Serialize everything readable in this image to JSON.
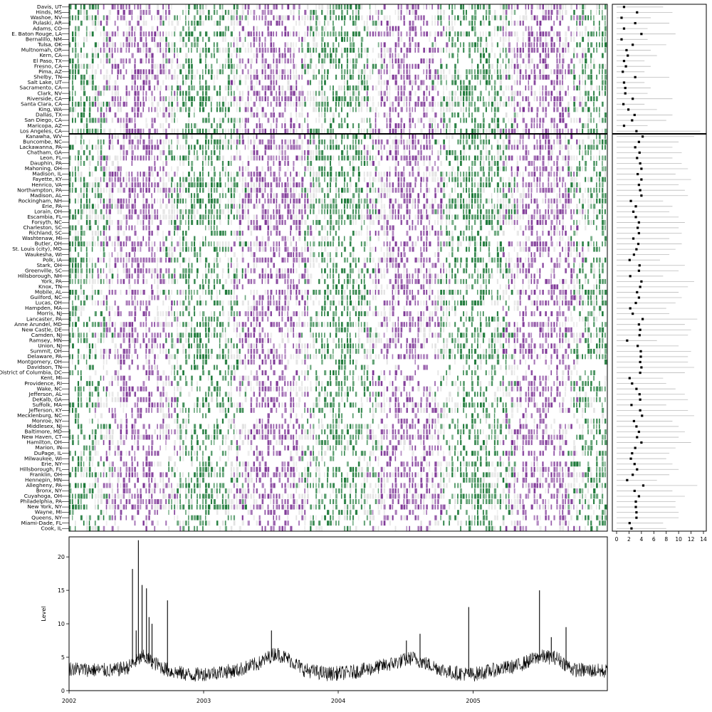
{
  "chart_data": [
    {
      "type": "heatmap",
      "title": "",
      "xlabel": "",
      "ylabel": "",
      "x_range": [
        "2002-01-01",
        "2005-12-31"
      ],
      "colors": {
        "high": "#7b3294",
        "low": "#1b7837",
        "mid": "#e0e0e0",
        "divider": "#000000"
      },
      "group_top": [
        "Davis, UT",
        "Hinds, MS",
        "Washoe, NV",
        "Pulaski, AR",
        "Adams, CO",
        "E. Baton Rouge, LA",
        "Bernalillo, NM",
        "Tulsa, OK",
        "Multnomah, OR",
        "Kern, CA",
        "El Paso, TX",
        "Fresno, CA",
        "Pima, AZ",
        "Shelby, TN",
        "Salt Lake, UT",
        "Sacramento, CA",
        "Clark, NV",
        "Riverside, CA",
        "Santa Clara, CA",
        "King, WA",
        "Dallas, TX",
        "San Diego, CA",
        "Maricopa, AZ",
        "Los Angeles, CA"
      ],
      "group_bottom": [
        "Kanawha, WV",
        "Buncombe, NC",
        "Lackawanna, PA",
        "Chatham, GA",
        "Leon, FL",
        "Dauphin, PA",
        "Mahoning, OH",
        "Madison, IL",
        "Fayette, KY",
        "Henrico, VA",
        "Northampton, PA",
        "Madison, AL",
        "Rockingham, NH",
        "Erie, PA",
        "Lorain, OH",
        "Escambia, FL",
        "Forsyth, NC",
        "Charleston, SC",
        "Richland, SC",
        "Washtenaw, MI",
        "Butler, OH",
        "St. Louis (city), MO",
        "Waukesha, WI",
        "Polk, IA",
        "Stark, OH",
        "Greenville, SC",
        "Hillsborough, NH",
        "York, PA",
        "Knox, TN",
        "Mobile, AL",
        "Guilford, NC",
        "Lucas, OH",
        "Hampden, MA",
        "Morris, NJ",
        "Lancaster, PA",
        "Anne Arundel, MD",
        "New Castle, DE",
        "Camden, NJ",
        "Ramsey, MN",
        "Union, NJ",
        "Summit, OH",
        "Delaware, PA",
        "Montgomery, OH",
        "Davidson, TN",
        "District of Columbia, DC",
        "Kent, MI",
        "Providence, RI",
        "Wake, NC",
        "Jefferson, AL",
        "DeKalb, GA",
        "Suffolk, MA",
        "Jefferson, KY",
        "Mecklenburg, NC",
        "Monroe, NY",
        "Middlesex, NJ",
        "Baltimore, MD",
        "New Haven, CT",
        "Hamilton, OH",
        "Marion, IN",
        "DuPage, IL",
        "Milwaukee, WI",
        "Erie, NY",
        "Hillsborough, FL",
        "Franklin, OH",
        "Hennepin, MN",
        "Allegheny, PA",
        "Bronx, NY",
        "Cuyahoga, OH",
        "Philadelphia, PA",
        "New York, NY",
        "Wayne, MI",
        "Queens, NY",
        "Miami-Dade, FL",
        "Cook, IL"
      ]
    },
    {
      "type": "scatter",
      "title": "",
      "xlabel": "",
      "ylabel": "",
      "xlim": [
        0,
        14
      ],
      "x_ticks": [
        0,
        2,
        4,
        6,
        8,
        10,
        12,
        14
      ],
      "x_tick_labels": [
        "0",
        "2",
        "4",
        "6",
        "8",
        "10",
        "12",
        "14"
      ],
      "median_top": [
        1.2,
        3.3,
        0.8,
        3.0,
        1.2,
        4.0,
        0.8,
        2.6,
        1.6,
        1.8,
        1.2,
        1.5,
        1.0,
        3.0,
        1.2,
        1.4,
        1.4,
        2.6,
        1.1,
        1.9,
        2.9,
        2.5,
        1.2,
        3.2
      ],
      "max_top": [
        7.5,
        9.0,
        5.5,
        8.5,
        5.0,
        9.5,
        5.0,
        8.0,
        5.5,
        6.5,
        4.5,
        5.5,
        4.5,
        8.5,
        4.5,
        5.5,
        5.0,
        9.0,
        4.5,
        6.5,
        9.0,
        8.0,
        5.0,
        13.5
      ],
      "median_bottom": [
        4.2,
        3.6,
        3.0,
        3.7,
        3.3,
        3.8,
        4.0,
        3.4,
        4.0,
        3.6,
        3.8,
        4.0,
        2.3,
        3.1,
        2.7,
        3.1,
        3.6,
        3.4,
        3.6,
        2.7,
        3.5,
        3.2,
        2.8,
        2.1,
        3.7,
        3.6,
        2.2,
        4.0,
        3.8,
        3.3,
        3.6,
        3.1,
        2.2,
        2.6,
        4.2,
        3.6,
        3.8,
        3.7,
        1.7,
        3.4,
        3.9,
        3.9,
        3.8,
        4.0,
        3.8,
        2.1,
        2.5,
        3.2,
        3.7,
        3.8,
        2.4,
        3.8,
        4.1,
        2.8,
        3.2,
        3.6,
        3.3,
        4.0,
        3.0,
        2.5,
        2.3,
        2.9,
        3.3,
        2.6,
        1.7,
        4.3,
        2.9,
        3.6,
        3.1,
        3.1,
        3.2,
        3.2,
        2.1,
        2.4
      ],
      "max_bottom": [
        12.5,
        10.0,
        9.0,
        10.5,
        9.0,
        10.5,
        11.5,
        9.5,
        12.0,
        10.0,
        11.0,
        11.5,
        7.5,
        9.0,
        8.5,
        10.0,
        11.0,
        10.0,
        10.5,
        8.5,
        10.5,
        9.5,
        8.5,
        7.0,
        11.0,
        10.0,
        7.5,
        12.5,
        11.5,
        10.0,
        10.5,
        9.5,
        8.0,
        8.5,
        13.0,
        11.0,
        12.0,
        11.5,
        6.5,
        10.0,
        12.0,
        11.5,
        11.5,
        12.5,
        11.0,
        7.5,
        8.0,
        9.5,
        11.0,
        11.5,
        8.0,
        11.5,
        12.5,
        9.0,
        10.0,
        11.0,
        10.0,
        12.0,
        9.5,
        8.5,
        8.0,
        9.0,
        10.0,
        8.5,
        6.5,
        13.0,
        9.0,
        11.0,
        9.5,
        9.5,
        10.0,
        10.0,
        7.5,
        8.0
      ]
    },
    {
      "type": "line",
      "title": "",
      "xlabel": "",
      "ylabel": "Level",
      "xlim": [
        "2002-01-01",
        "2005-12-31"
      ],
      "ylim": [
        0,
        23
      ],
      "y_ticks": [
        0,
        5,
        10,
        15,
        20
      ],
      "y_tick_labels": [
        "0",
        "5",
        "10",
        "15",
        "20"
      ],
      "x_ticks": [
        "2002-01-01",
        "2003-01-01",
        "2004-01-01",
        "2005-01-01"
      ],
      "x_tick_labels": [
        "2002",
        "2003",
        "2004",
        "2005"
      ],
      "baseline": [
        [
          "2002-01-01",
          3.2
        ],
        [
          "2002-03-01",
          3.0
        ],
        [
          "2002-05-01",
          2.9
        ],
        [
          "2002-06-10",
          3.4
        ],
        [
          "2002-07-20",
          5.0
        ],
        [
          "2002-08-20",
          4.0
        ],
        [
          "2002-10-01",
          2.8
        ],
        [
          "2002-12-01",
          2.2
        ],
        [
          "2003-02-01",
          2.6
        ],
        [
          "2003-04-01",
          2.9
        ],
        [
          "2003-06-01",
          4.0
        ],
        [
          "2003-07-15",
          5.5
        ],
        [
          "2003-08-20",
          4.6
        ],
        [
          "2003-10-01",
          3.0
        ],
        [
          "2003-12-01",
          2.4
        ],
        [
          "2004-02-01",
          2.6
        ],
        [
          "2004-04-01",
          3.2
        ],
        [
          "2004-06-01",
          4.0
        ],
        [
          "2004-07-20",
          4.8
        ],
        [
          "2004-09-01",
          3.8
        ],
        [
          "2004-11-01",
          2.6
        ],
        [
          "2005-01-01",
          2.3
        ],
        [
          "2005-03-01",
          3.0
        ],
        [
          "2005-05-01",
          3.6
        ],
        [
          "2005-07-01",
          5.0
        ],
        [
          "2005-08-15",
          4.8
        ],
        [
          "2005-10-01",
          3.0
        ],
        [
          "2005-12-31",
          2.8
        ]
      ],
      "spikes": [
        [
          "2002-06-22",
          18.2
        ],
        [
          "2002-07-08",
          22.5
        ],
        [
          "2002-07-18",
          15.8
        ],
        [
          "2002-07-30",
          15.3
        ],
        [
          "2002-08-06",
          11.0
        ],
        [
          "2002-08-14",
          10.0
        ],
        [
          "2002-09-25",
          13.5
        ],
        [
          "2002-07-02",
          9.0
        ],
        [
          "2003-07-04",
          9.0
        ],
        [
          "2004-07-04",
          7.5
        ],
        [
          "2004-08-10",
          8.5
        ],
        [
          "2004-12-20",
          12.5
        ],
        [
          "2005-06-30",
          15.0
        ],
        [
          "2005-09-10",
          9.5
        ],
        [
          "2005-08-01",
          8.0
        ]
      ]
    }
  ]
}
